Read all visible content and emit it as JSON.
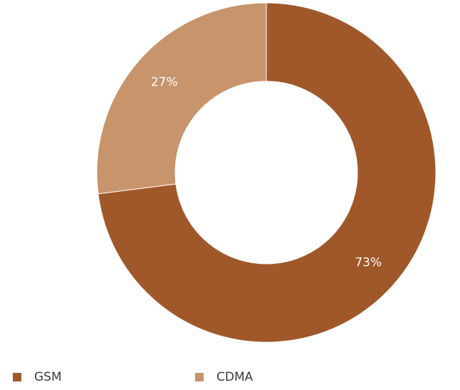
{
  "chart_data": {
    "type": "pie",
    "subtype": "donut",
    "title": "",
    "legend_position": "bottom-left",
    "categories": [
      "GSM",
      "CDMA"
    ],
    "values": [
      73,
      27
    ],
    "labels": [
      "73%",
      "27%"
    ],
    "colors": [
      "#a0582a",
      "#c8946c"
    ]
  },
  "legend": {
    "items": [
      {
        "label": "GSM",
        "color": "#a0582a"
      },
      {
        "label": "CDMA",
        "color": "#c8946c"
      }
    ]
  }
}
